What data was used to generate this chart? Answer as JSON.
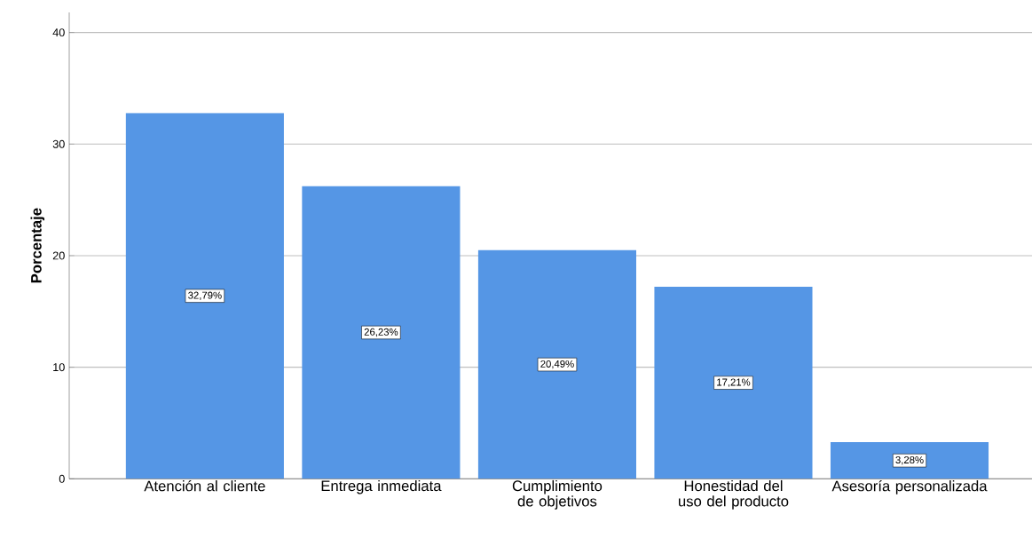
{
  "chart_data": {
    "type": "bar",
    "ylabel": "Porcentaje",
    "categories": [
      "Atención al cliente",
      "Entrega inmediata",
      "Cumplimiento de objetivos",
      "Honestidad del uso del producto",
      "Asesoría personalizada"
    ],
    "values": [
      32.79,
      26.23,
      20.49,
      17.21,
      3.28
    ],
    "value_labels": [
      "32,79%",
      "26,23%",
      "20,49%",
      "17,21%",
      "3,28%"
    ],
    "color": "#5596e5",
    "ylim": [
      0,
      41.8
    ],
    "yticks": [
      0,
      10,
      20,
      30,
      40
    ],
    "grid": "y"
  }
}
